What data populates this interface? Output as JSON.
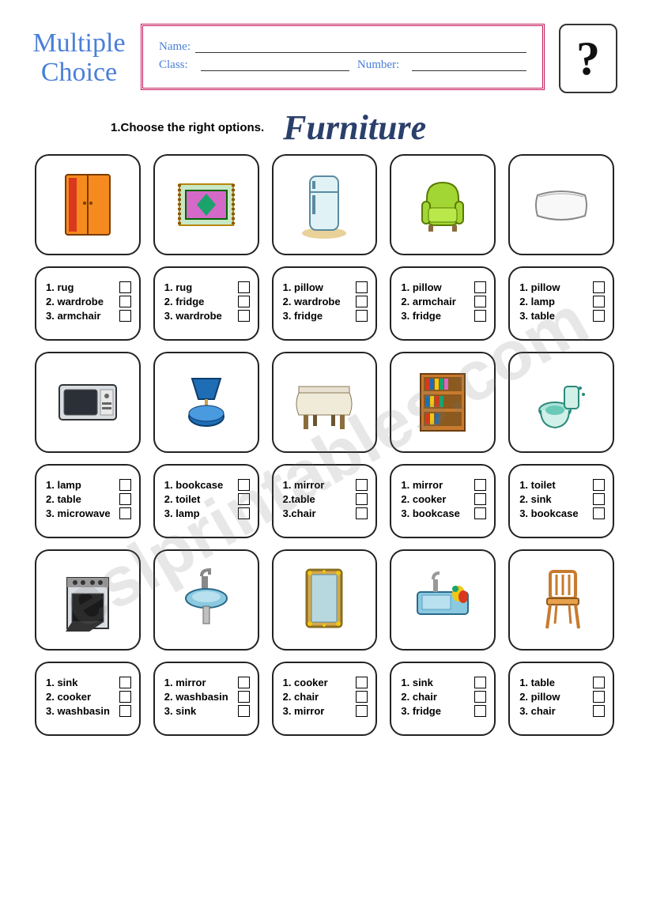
{
  "header": {
    "mc_title_line1": "Multiple",
    "mc_title_line2": "Choice",
    "name_label": "Name:",
    "class_label": "Class:",
    "number_label": "Number:",
    "qmark": "?"
  },
  "instruction": "1.Choose the right options.",
  "main_title": "Furniture",
  "watermark": "eslprintables.com",
  "colors": {
    "title_blue": "#4a7fd8",
    "border_pink": "#c2185b",
    "main_title_color": "#2b3f6b",
    "card_border": "#222222"
  },
  "items": [
    {
      "icon": "wardrobe",
      "options": [
        "1. rug",
        "2. wardrobe",
        "3. armchair"
      ]
    },
    {
      "icon": "rug",
      "options": [
        "1. rug",
        "2. fridge",
        "3. wardrobe"
      ]
    },
    {
      "icon": "fridge",
      "options": [
        "1. pillow",
        "2. wardrobe",
        "3. fridge"
      ]
    },
    {
      "icon": "armchair",
      "options": [
        "1. pillow",
        "2. armchair",
        "3. fridge"
      ]
    },
    {
      "icon": "pillow",
      "options": [
        "1. pillow",
        "2. lamp",
        "3. table"
      ]
    },
    {
      "icon": "microwave",
      "options": [
        "1. lamp",
        "2. table",
        "3. microwave"
      ]
    },
    {
      "icon": "lamp",
      "options": [
        "1. bookcase",
        "2. toilet",
        "3. lamp"
      ]
    },
    {
      "icon": "table",
      "options": [
        "1. mirror",
        "2.table",
        "3.chair"
      ]
    },
    {
      "icon": "bookcase",
      "options": [
        "1. mirror",
        "2. cooker",
        "3. bookcase"
      ]
    },
    {
      "icon": "toilet",
      "options": [
        "1. toilet",
        "2. sink",
        "3. bookcase"
      ]
    },
    {
      "icon": "cooker",
      "options": [
        "1. sink",
        "2. cooker",
        "3. washbasin"
      ]
    },
    {
      "icon": "washbasin",
      "options": [
        "1. mirror",
        "2. washbasin",
        "3. sink"
      ]
    },
    {
      "icon": "mirror",
      "options": [
        "1. cooker",
        "2. chair",
        "3. mirror"
      ]
    },
    {
      "icon": "sink",
      "options": [
        "1. sink",
        "2. chair",
        "3. fridge"
      ]
    },
    {
      "icon": "chair",
      "options": [
        "1. table",
        "2. pillow",
        "3. chair"
      ]
    }
  ],
  "icon_svgs": {
    "wardrobe": "<rect x='20' y='10' width='56' height='76' rx='3' fill='#f58a1f' stroke='#7a3b00' stroke-width='2'/><line x1='48' y1='10' x2='48' y2='86' stroke='#7a3b00' stroke-width='2'/><rect x='24' y='14' width='10' height='68' fill='#d9381e'/><circle cx='44' cy='46' r='2' fill='#7a3b00'/><circle cx='52' cy='46' r='2' fill='#7a3b00'/>",
    "rug": "<rect x='14' y='22' width='68' height='52' fill='#c6e8c6' stroke='#b8860b' stroke-width='2'/><rect x='22' y='30' width='52' height='36' fill='#d569c8' stroke='#006400' stroke-width='2'/><polygon points='48,34 60,48 48,62 36,48' fill='#1aa36b'/><line x1='14' y1='22' x2='14' y2='74' stroke='#8b5a00' stroke-width='4' stroke-dasharray='3,3'/><line x1='82' y1='22' x2='82' y2='74' stroke='#8b5a00' stroke-width='4' stroke-dasharray='3,3'/>",
    "fridge": "<ellipse cx='48' cy='84' rx='28' ry='7' fill='#e8d29a'/><rect x='30' y='12' width='36' height='68' rx='8' fill='#e0f2f5' stroke='#5a8aa0' stroke-width='2'/><line x1='30' y1='32' x2='66' y2='32' stroke='#5a8aa0' stroke-width='2'/><rect x='33' y='18' width='4' height='10' fill='#5a8aa0'/><rect x='33' y='36' width='4' height='24' fill='#5a8aa0'/>",
    "armchair": "<path d='M28 40 Q28 20 48 20 Q68 20 68 40 L68 64 Q68 74 58 74 L38 74 Q28 74 28 64 Z' fill='#a2d635' stroke='#5a7a00' stroke-width='2'/><rect x='22' y='44' width='10' height='28' rx='5' fill='#a2d635' stroke='#5a7a00' stroke-width='2'/><rect x='64' y='44' width='10' height='28' rx='5' fill='#a2d635' stroke='#5a7a00' stroke-width='2'/><rect x='30' y='52' width='36' height='18' rx='4' fill='#b8e84a' stroke='#5a7a00' stroke-width='1'/><rect x='30' y='74' width='6' height='8' fill='#8a6d3b'/><rect x='60' y='74' width='6' height='8' fill='#8a6d3b'/>",
    "pillow": "<path d='M18 36 Q48 26 78 36 Q82 48 78 62 Q48 72 18 62 Q14 48 18 36 Z' fill='#f8f8f8' stroke='#888' stroke-width='2'/><path d='M20 38 Q48 30 76 38' fill='none' stroke='#aaa' stroke-width='1'/>",
    "microwave": "<rect x='12' y='26' width='72' height='44' rx='4' fill='#d8dde2' stroke='#333' stroke-width='2'/><rect x='18' y='32' width='42' height='32' rx='3' fill='#2a2f38' stroke='#555'/><rect x='64' y='32' width='16' height='32' fill='#e8e8e8' stroke='#999'/><circle cx='72' cy='40' r='3' fill='#666'/><rect x='66' y='48' width='12' height='3' fill='#666'/><rect x='66' y='54' width='12' height='3' fill='#666'/>",
    "lamp": "<path d='M30 18 L66 18 L58 44 L38 44 Z' fill='#1e6db5' stroke='#0d3d6b' stroke-width='2'/><rect x='46' y='44' width='4' height='14' fill='#c9a24a'/><ellipse cx='48' cy='66' rx='22' ry='12' fill='#1e6db5' stroke='#0d3d6b' stroke-width='2'/><ellipse cx='48' cy='62' rx='22' ry='10' fill='#4a9ae0' stroke='#0d3d6b' stroke-width='1'/>",
    "table": "<rect x='16' y='28' width='64' height='8' fill='#e8e0d0' stroke='#8a7a5a' stroke-width='1'/><path d='M16 36 Q10 50 16 64 L80 64 Q86 50 80 36 Z' fill='#f0ead8' stroke='#8a7a5a' stroke-width='1'/><rect x='22' y='64' width='6' height='18' fill='#8a6d3b'/><rect x='68' y='64' width='6' height='18' fill='#8a6d3b'/><rect x='34' y='64' width='5' height='14' fill='#6b5530'/><rect x='57' y='64' width='5' height='14' fill='#6b5530'/>",
    "bookcase": "<rect x='20' y='12' width='56' height='72' fill='#c97a2e' stroke='#6b3d0f' stroke-width='2'/><rect x='24' y='16' width='48' height='18' fill='#8a5a1f'/><rect x='24' y='38' width='48' height='18' fill='#8a5a1f'/><rect x='24' y='60' width='48' height='18' fill='#8a5a1f'/><rect x='26' y='18' width='5' height='14' fill='#d9381e'/><rect x='32' y='18' width='5' height='14' fill='#1e6db5'/><rect x='38' y='18' width='5' height='14' fill='#f0c814'/><rect x='44' y='18' width='5' height='14' fill='#1aa36b'/><rect x='50' y='18' width='5' height='14' fill='#d569c8'/><rect x='26' y='40' width='5' height='14' fill='#1e6db5'/><rect x='32' y='40' width='5' height='14' fill='#f0c814'/><rect x='38' y='40' width='5' height='14' fill='#d9381e'/><rect x='44' y='40' width='5' height='14' fill='#1aa36b'/><rect x='26' y='62' width='5' height='14' fill='#d9381e'/><rect x='32' y='62' width='5' height='14' fill='#f0c814'/><rect x='38' y='62' width='5' height='14' fill='#1e6db5'/>",
    "toilet": "<ellipse cx='40' cy='58' rx='20' ry='10' fill='#aee4d9' stroke='#2a8a7a' stroke-width='2'/><path d='M22 58 Q22 78 40 80 Q58 78 58 58' fill='#d0f0e8' stroke='#2a8a7a' stroke-width='2'/><ellipse cx='40' cy='58' rx='12' ry='6' fill='#6bc9b8'/><rect x='52' y='28' width='18' height='28' rx='4' fill='#d0f0e8' stroke='#2a8a7a' stroke-width='2'/><circle cx='72' cy='30' r='2' fill='#2a8a7a'/><circle cx='76' cy='38' r='2' fill='#2a8a7a'/>",
    "cooker": "<rect x='22' y='20' width='52' height='64' fill='#d8dde2' stroke='#333' stroke-width='2'/><rect x='22' y='20' width='52' height='12' fill='#999'/><circle cx='32' cy='26' r='3' fill='#333'/><circle cx='42' cy='26' r='3' fill='#333'/><circle cx='54' cy='26' r='3' fill='#333'/><circle cx='64' cy='26' r='3' fill='#333'/><rect x='28' y='40' width='40' height='36' fill='#1a1a1a' stroke='#555'/><path d='M28 76 L20 88 L50 88 L68 76 Z' fill='#333'/>",
    "washbasin": "<rect x='42' y='18' width='8' height='18' fill='#888'/><path d='M42 18 Q42 10 52 10 L52 16' fill='none' stroke='#888' stroke-width='4'/><ellipse cx='48' cy='46' rx='26' ry='12' fill='#8ac9e0' stroke='#2a6a8a' stroke-width='2'/><ellipse cx='48' cy='44' rx='18' ry='7' fill='#b8e0ee'/><rect x='44' y='56' width='8' height='22' fill='#c0c0c0' stroke='#666' stroke-width='1'/>",
    "mirror": "<rect x='26' y='10' width='44' height='72' rx='4' fill='#d4a84a' stroke='#8a6d1f' stroke-width='3'/><rect x='32' y='16' width='32' height='60' fill='#b8d8e0' stroke='#5a8aa0' stroke-width='1'/><circle cx='30' cy='14' r='3' fill='#f0c814'/><circle cx='66' cy='14' r='3' fill='#f0c814'/><circle cx='30' cy='78' r='3' fill='#f0c814'/><circle cx='66' cy='78' r='3' fill='#f0c814'/><circle cx='48' cy='12' r='2' fill='#f0c814'/><circle cx='48' cy='80' r='2' fill='#f0c814'/>",
    "sink": "<rect x='16' y='38' width='64' height='28' rx='4' fill='#8ac9e0' stroke='#2a6a8a' stroke-width='2'/><rect x='22' y='42' width='36' height='18' fill='#b8e0ee' stroke='#5aa0c0'/><rect x='36' y='22' width='6' height='16' fill='#999'/><path d='M36 22 Q36 14 44 14' fill='none' stroke='#999' stroke-width='4'/><ellipse cx='68' cy='40' rx='8' ry='10' fill='#f0c814'/><ellipse cx='74' cy='44' rx='6' ry='8' fill='#d9381e'/><circle cx='64' cy='34' r='4' fill='#1aa36b'/>",
    "chair": "<rect x='34' y='12' width='32' height='34' rx='4' fill='none' stroke='#c97a2e' stroke-width='4'/><line x1='42' y1='16' x2='42' y2='42' stroke='#c97a2e' stroke-width='3'/><line x1='50' y1='16' x2='50' y2='42' stroke='#c97a2e' stroke-width='3'/><line x1='58' y1='16' x2='58' y2='42' stroke='#c97a2e' stroke-width='3'/><rect x='30' y='46' width='40' height='8' rx='2' fill='#e8a04a' stroke='#8a5a1f' stroke-width='2'/><line x1='34' y1='54' x2='30' y2='84' stroke='#c97a2e' stroke-width='4'/><line x1='66' y1='54' x2='70' y2='84' stroke='#c97a2e' stroke-width='4'/><line x1='42' y1='54' x2='40' y2='78' stroke='#c97a2e' stroke-width='3'/><line x1='58' y1='54' x2='60' y2='78' stroke='#c97a2e' stroke-width='3'/>"
  }
}
